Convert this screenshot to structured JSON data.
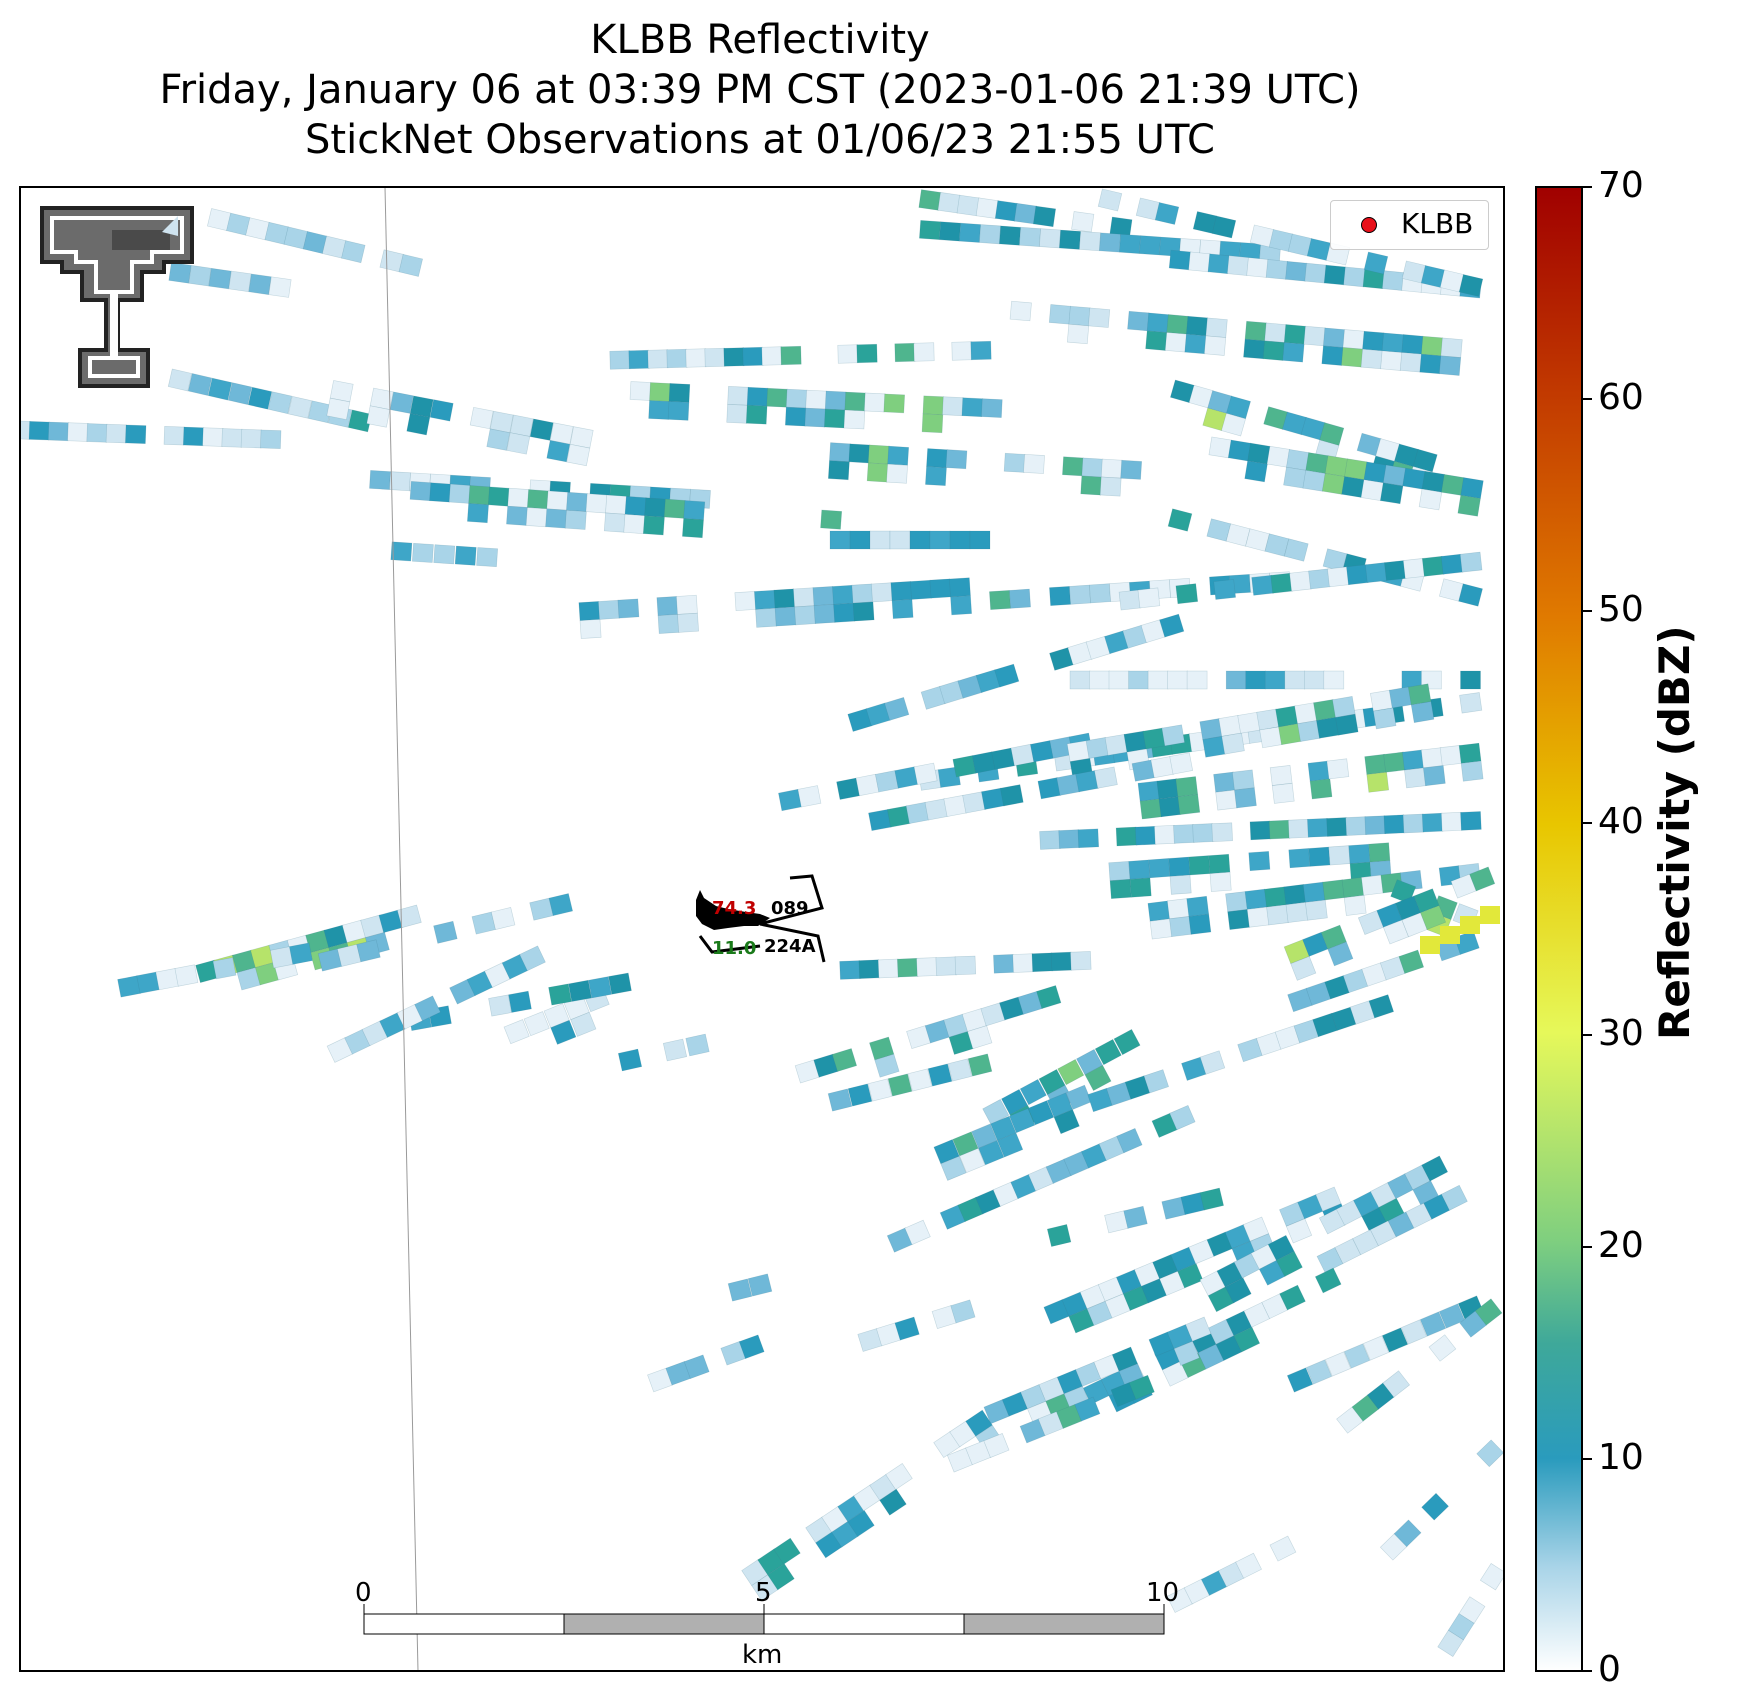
{
  "title": {
    "line1": "KLBB Reflectivity",
    "line2": "Friday, January 06 at 03:39 PM CST (2023-01-06 21:39 UTC)",
    "line3": "StickNet Observations at 01/06/23 21:55 UTC"
  },
  "legend": {
    "label": "KLBB",
    "marker_color": "#e8101a"
  },
  "colorbar": {
    "label": "Reflectivity (dBZ)",
    "ticks": [
      "0",
      "10",
      "20",
      "30",
      "40",
      "50",
      "60",
      "70"
    ],
    "range": [
      0,
      70
    ],
    "stops": [
      "#ffffff",
      "#a9d4e8",
      "#2a9bbd",
      "#1b9696",
      "#7fcf7f",
      "#d9f25a",
      "#e8c600",
      "#e07a00",
      "#c23a00",
      "#a00000"
    ]
  },
  "scalebar": {
    "ticks": [
      "0",
      "5",
      "10"
    ],
    "unit": "km"
  },
  "station": {
    "temperature": "74.3",
    "dewpoint": "11.0",
    "pressure": "089",
    "id": "224A",
    "temperature_color": "#c00000",
    "dewpoint_color": "#1a7a1a"
  },
  "logo": {
    "name": "texas-tech-double-t-logo"
  }
}
